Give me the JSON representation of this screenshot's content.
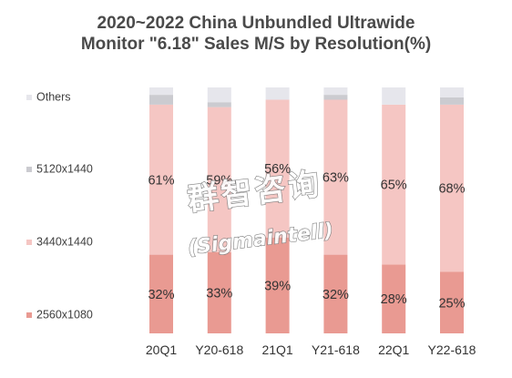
{
  "chart_data": {
    "type": "bar",
    "stacked": true,
    "percent": true,
    "title_lines": [
      "2020~2022 China Unbundled Ultrawide",
      "Monitor \"6.18\" Sales M/S by Resolution(%)"
    ],
    "categories": [
      "20Q1",
      "Y20-618",
      "21Q1",
      "Y21-618",
      "22Q1",
      "Y22-618"
    ],
    "series": [
      {
        "name": "2560x1080",
        "values": [
          32,
          33,
          39,
          32,
          28,
          25
        ],
        "labels": [
          "32%",
          "33%",
          "39%",
          "32%",
          "28%",
          "25%"
        ],
        "color": "#e99a92"
      },
      {
        "name": "3440x1440",
        "values": [
          61,
          59,
          56,
          63,
          65,
          68
        ],
        "labels": [
          "61%",
          "59%",
          "56%",
          "63%",
          "65%",
          "68%"
        ],
        "color": "#f5c6c3"
      },
      {
        "name": "5120x1440",
        "values": [
          4,
          2,
          0,
          2,
          0,
          3
        ],
        "color": "#cbcbd0"
      },
      {
        "name": "Others",
        "values": [
          3,
          6,
          5,
          3,
          7,
          4
        ],
        "color": "#e6e6ec"
      }
    ],
    "ylim": [
      0,
      100
    ],
    "grid": false,
    "legend_position": "left"
  },
  "watermark": {
    "cn": "群智咨询",
    "en": "(Sigmaintell)"
  }
}
